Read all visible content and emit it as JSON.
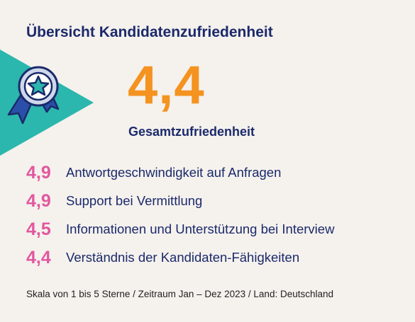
{
  "title": "Übersicht Kandidatenzufriedenheit",
  "overall": {
    "score": "4,4",
    "label": "Gesamtzufriedenheit"
  },
  "metrics": [
    {
      "score": "4,9",
      "label": "Antwortgeschwindigkeit auf Anfragen"
    },
    {
      "score": "4,9",
      "label": "Support bei Vermittlung"
    },
    {
      "score": "4,5",
      "label": "Informationen und Unterstützung bei Interview"
    },
    {
      "score": "4,4",
      "label": "Verständnis der Kandidaten-Fähigkeiten"
    }
  ],
  "footnote": "Skala von 1 bis 5 Sterne / Zeitraum Jan – Dez 2023 /  Land: Deutschland",
  "icons": {
    "badge": "award-ribbon-star-icon"
  },
  "colors": {
    "title": "#1b2a6b",
    "overall_score": "#f4931f",
    "metric_score": "#e2579f",
    "triangle": "#2bb7ad",
    "background": "#f5f1ed"
  }
}
